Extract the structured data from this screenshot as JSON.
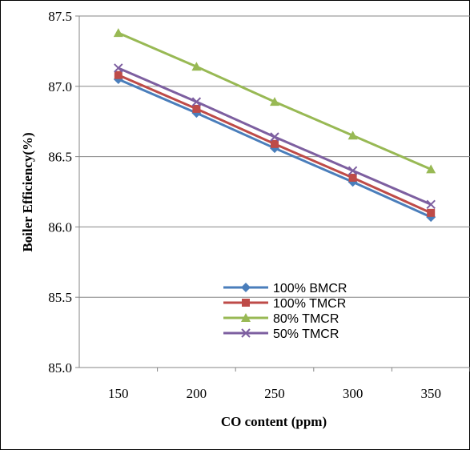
{
  "chart_data": {
    "type": "line",
    "title": "",
    "xlabel": "CO content (ppm)",
    "ylabel": "Boiler Efficiency(%)",
    "categories": [
      "150",
      "200",
      "250",
      "300",
      "350"
    ],
    "ylim": [
      85.0,
      87.5
    ],
    "yticks": [
      "85.0",
      "85.5",
      "86.0",
      "86.5",
      "87.0",
      "87.5"
    ],
    "grid": "horizontal",
    "legend_position": "inside-lower-center",
    "series": [
      {
        "name": "100% BMCR",
        "values": [
          87.05,
          86.81,
          86.56,
          86.32,
          86.07
        ],
        "color": "#4A7EBB",
        "marker": "diamond"
      },
      {
        "name": "100% TMCR",
        "values": [
          87.08,
          86.84,
          86.59,
          86.35,
          86.1
        ],
        "color": "#BE4B48",
        "marker": "square"
      },
      {
        "name": "80% TMCR",
        "values": [
          87.38,
          87.14,
          86.89,
          86.65,
          86.41
        ],
        "color": "#98B954",
        "marker": "triangle"
      },
      {
        "name": "50% TMCR",
        "values": [
          87.13,
          86.89,
          86.64,
          86.4,
          86.16
        ],
        "color": "#7D5FA0",
        "marker": "x"
      }
    ]
  }
}
